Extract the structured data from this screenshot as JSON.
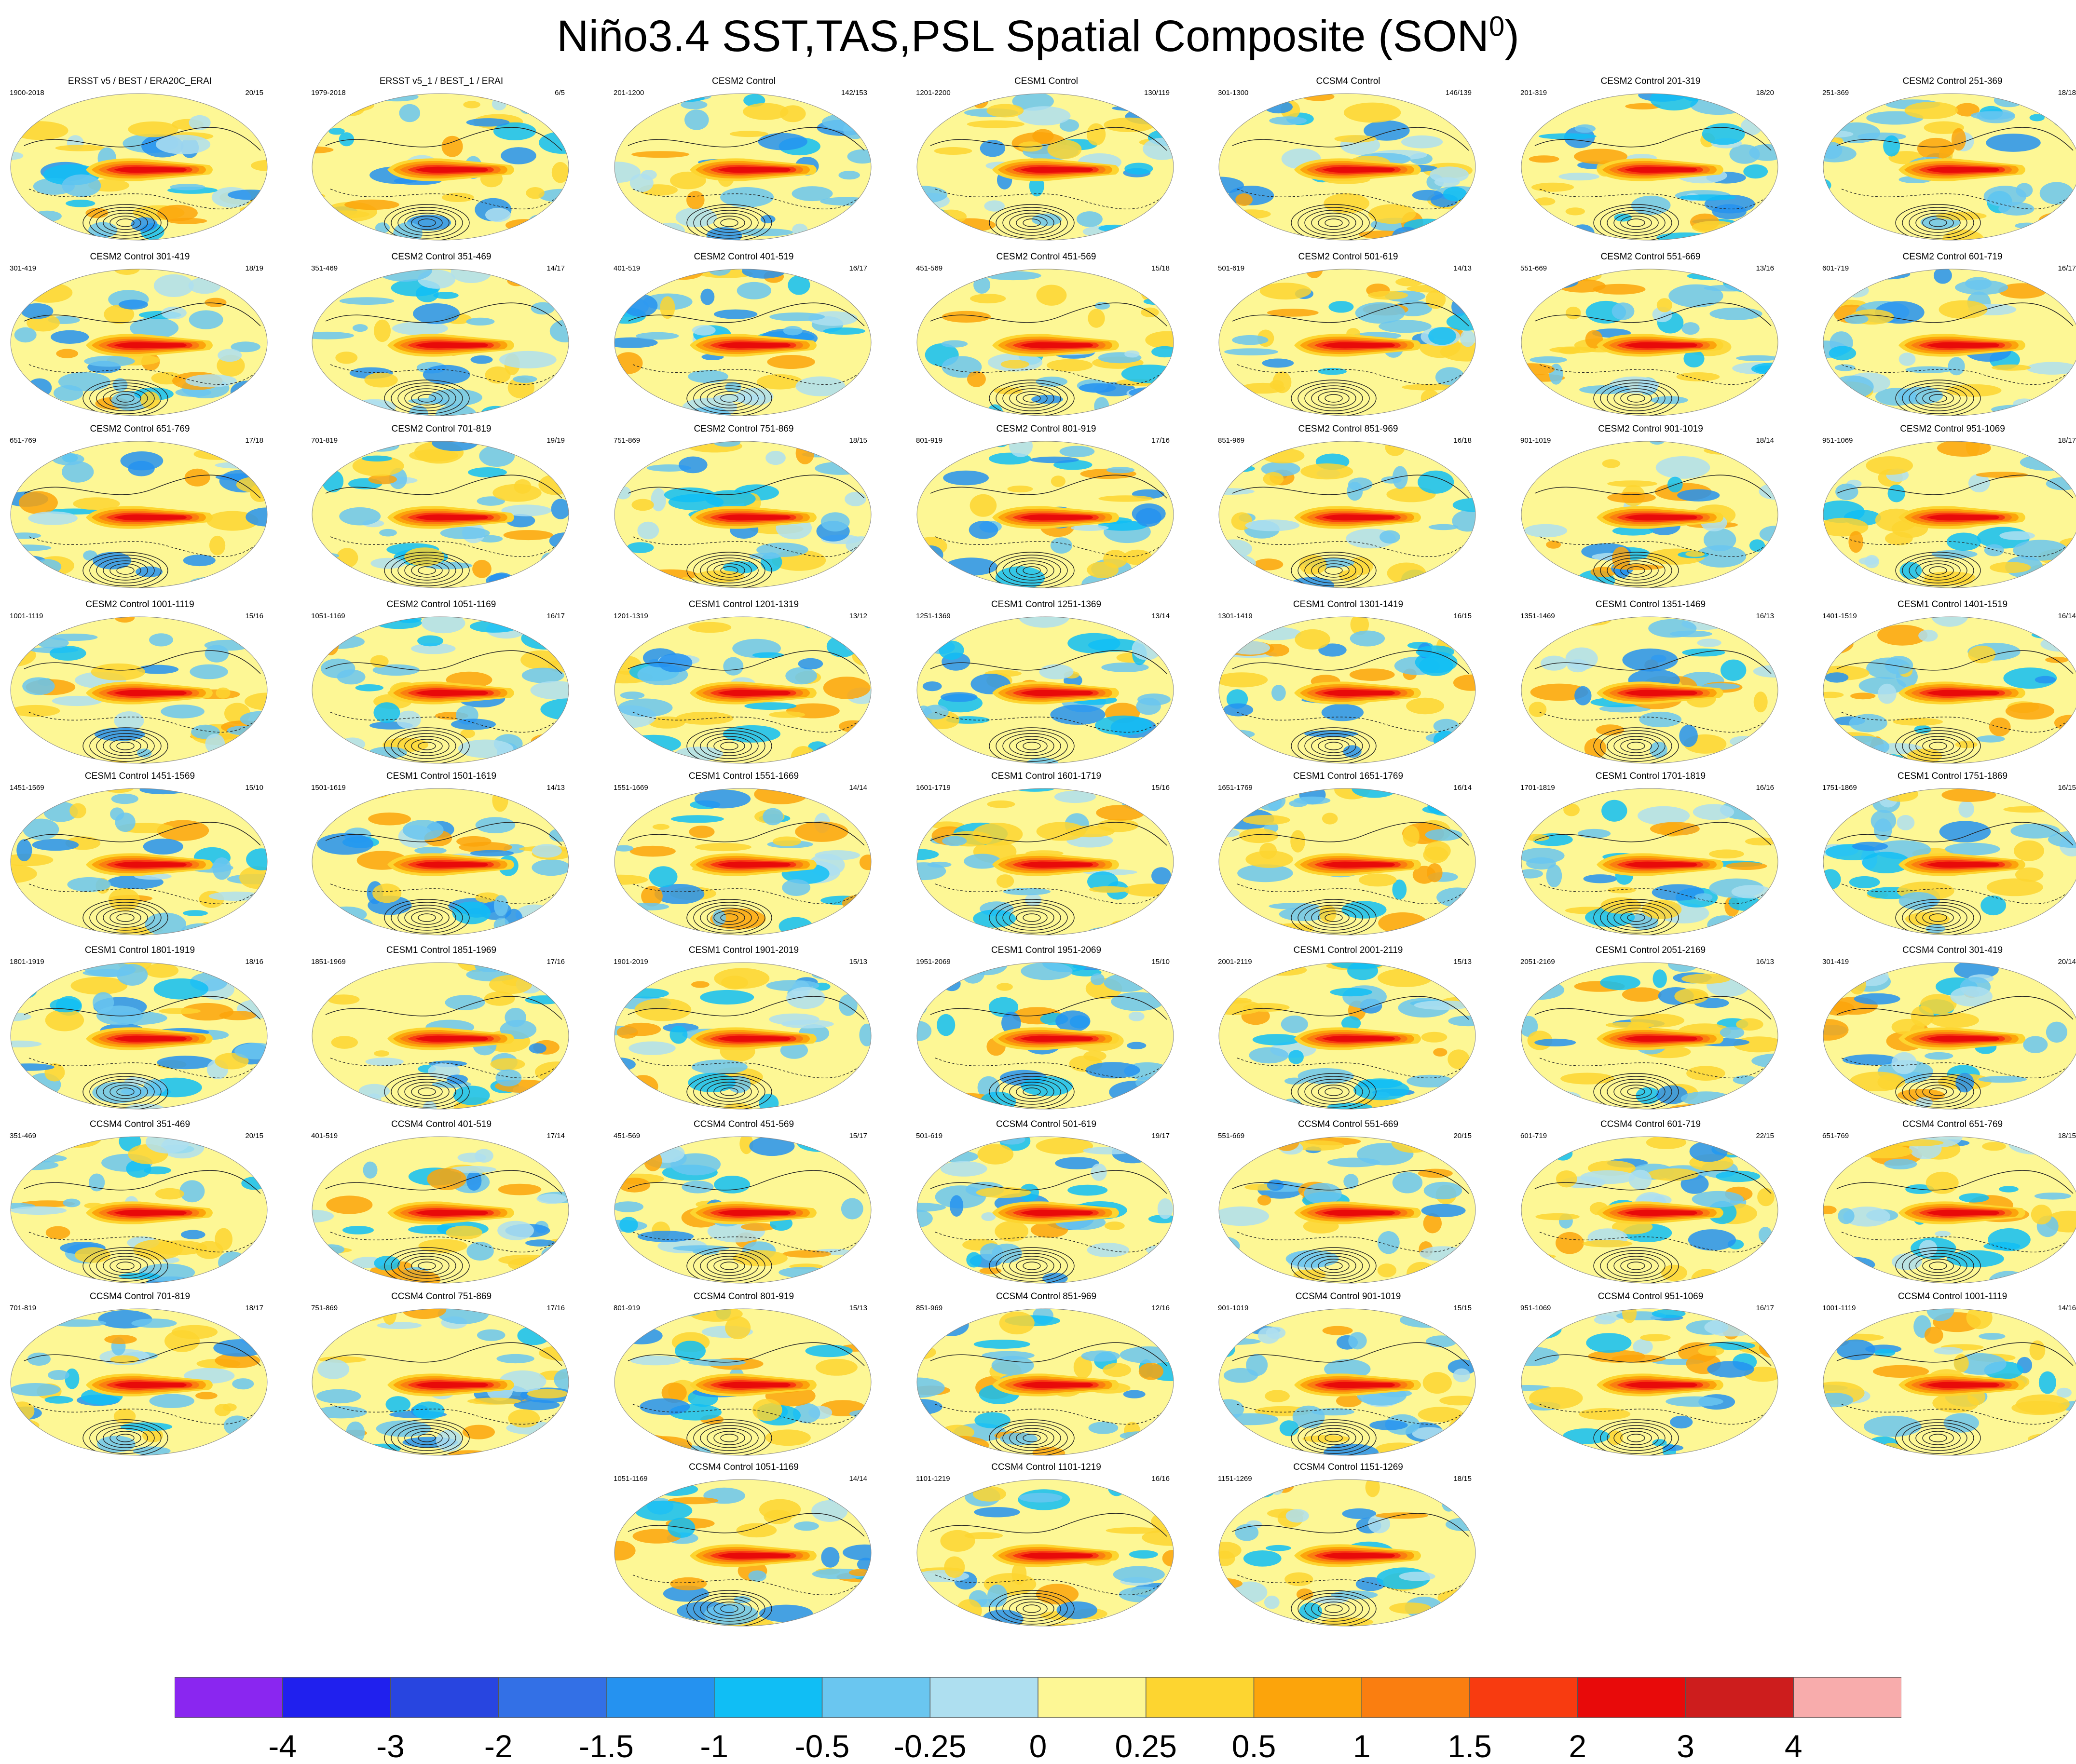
{
  "title": {
    "text": "Niño3.4 SST,TAS,PSL Spatial Composite (SON",
    "sup": "0",
    "close": ")"
  },
  "chart_data": {
    "type": "heatmap",
    "description_kind": "panel grid of global composite maps (filled anomalies with PSL contours)",
    "panels": [
      {
        "title": "ERSST v5 / BEST / ERA20C_ERAI",
        "years": "1900-2018",
        "counts": "20/15"
      },
      {
        "title": "ERSST v5_1 / BEST_1 / ERAI",
        "years": "1979-2018",
        "counts": "6/5"
      },
      {
        "title": "CESM2 Control",
        "years": "201-1200",
        "counts": "142/153"
      },
      {
        "title": "CESM1 Control",
        "years": "1201-2200",
        "counts": "130/119"
      },
      {
        "title": "CCSM4 Control",
        "years": "301-1300",
        "counts": "146/139"
      },
      {
        "title": "CESM2 Control 201-319",
        "years": "201-319",
        "counts": "18/20"
      },
      {
        "title": "CESM2 Control 251-369",
        "years": "251-369",
        "counts": "18/18"
      },
      {
        "title": "CESM2 Control 301-419",
        "years": "301-419",
        "counts": "18/19"
      },
      {
        "title": "CESM2 Control 351-469",
        "years": "351-469",
        "counts": "14/17"
      },
      {
        "title": "CESM2 Control 401-519",
        "years": "401-519",
        "counts": "16/17"
      },
      {
        "title": "CESM2 Control 451-569",
        "years": "451-569",
        "counts": "15/18"
      },
      {
        "title": "CESM2 Control 501-619",
        "years": "501-619",
        "counts": "14/13"
      },
      {
        "title": "CESM2 Control 551-669",
        "years": "551-669",
        "counts": "13/16"
      },
      {
        "title": "CESM2 Control 601-719",
        "years": "601-719",
        "counts": "16/17"
      },
      {
        "title": "CESM2 Control 651-769",
        "years": "651-769",
        "counts": "17/18"
      },
      {
        "title": "CESM2 Control 701-819",
        "years": "701-819",
        "counts": "19/19"
      },
      {
        "title": "CESM2 Control 751-869",
        "years": "751-869",
        "counts": "18/15"
      },
      {
        "title": "CESM2 Control 801-919",
        "years": "801-919",
        "counts": "17/16"
      },
      {
        "title": "CESM2 Control 851-969",
        "years": "851-969",
        "counts": "16/18"
      },
      {
        "title": "CESM2 Control 901-1019",
        "years": "901-1019",
        "counts": "18/14"
      },
      {
        "title": "CESM2 Control 951-1069",
        "years": "951-1069",
        "counts": "18/17"
      },
      {
        "title": "CESM2 Control 1001-1119",
        "years": "1001-1119",
        "counts": "15/16"
      },
      {
        "title": "CESM2 Control 1051-1169",
        "years": "1051-1169",
        "counts": "16/17"
      },
      {
        "title": "CESM1 Control 1201-1319",
        "years": "1201-1319",
        "counts": "13/12"
      },
      {
        "title": "CESM1 Control 1251-1369",
        "years": "1251-1369",
        "counts": "13/14"
      },
      {
        "title": "CESM1 Control 1301-1419",
        "years": "1301-1419",
        "counts": "16/15"
      },
      {
        "title": "CESM1 Control 1351-1469",
        "years": "1351-1469",
        "counts": "16/13"
      },
      {
        "title": "CESM1 Control 1401-1519",
        "years": "1401-1519",
        "counts": "16/14"
      },
      {
        "title": "CESM1 Control 1451-1569",
        "years": "1451-1569",
        "counts": "15/10"
      },
      {
        "title": "CESM1 Control 1501-1619",
        "years": "1501-1619",
        "counts": "14/13"
      },
      {
        "title": "CESM1 Control 1551-1669",
        "years": "1551-1669",
        "counts": "14/14"
      },
      {
        "title": "CESM1 Control 1601-1719",
        "years": "1601-1719",
        "counts": "15/16"
      },
      {
        "title": "CESM1 Control 1651-1769",
        "years": "1651-1769",
        "counts": "16/14"
      },
      {
        "title": "CESM1 Control 1701-1819",
        "years": "1701-1819",
        "counts": "16/16"
      },
      {
        "title": "CESM1 Control 1751-1869",
        "years": "1751-1869",
        "counts": "16/15"
      },
      {
        "title": "CESM1 Control 1801-1919",
        "years": "1801-1919",
        "counts": "18/16"
      },
      {
        "title": "CESM1 Control 1851-1969",
        "years": "1851-1969",
        "counts": "17/16"
      },
      {
        "title": "CESM1 Control 1901-2019",
        "years": "1901-2019",
        "counts": "15/13"
      },
      {
        "title": "CESM1 Control 1951-2069",
        "years": "1951-2069",
        "counts": "15/10"
      },
      {
        "title": "CESM1 Control 2001-2119",
        "years": "2001-2119",
        "counts": "15/13"
      },
      {
        "title": "CESM1 Control 2051-2169",
        "years": "2051-2169",
        "counts": "16/13"
      },
      {
        "title": "CCSM4 Control 301-419",
        "years": "301-419",
        "counts": "20/14"
      },
      {
        "title": "CCSM4 Control 351-469",
        "years": "351-469",
        "counts": "20/15"
      },
      {
        "title": "CCSM4 Control 401-519",
        "years": "401-519",
        "counts": "17/14"
      },
      {
        "title": "CCSM4 Control 451-569",
        "years": "451-569",
        "counts": "15/17"
      },
      {
        "title": "CCSM4 Control 501-619",
        "years": "501-619",
        "counts": "19/17"
      },
      {
        "title": "CCSM4 Control 551-669",
        "years": "551-669",
        "counts": "20/15"
      },
      {
        "title": "CCSM4 Control 601-719",
        "years": "601-719",
        "counts": "22/15"
      },
      {
        "title": "CCSM4 Control 651-769",
        "years": "651-769",
        "counts": "18/15"
      },
      {
        "title": "CCSM4 Control 701-819",
        "years": "701-819",
        "counts": "18/17"
      },
      {
        "title": "CCSM4 Control 751-869",
        "years": "751-869",
        "counts": "17/16"
      },
      {
        "title": "CCSM4 Control 801-919",
        "years": "801-919",
        "counts": "15/13"
      },
      {
        "title": "CCSM4 Control 851-969",
        "years": "851-969",
        "counts": "12/16"
      },
      {
        "title": "CCSM4 Control 901-1019",
        "years": "901-1019",
        "counts": "15/15"
      },
      {
        "title": "CCSM4 Control 951-1069",
        "years": "951-1069",
        "counts": "16/17"
      },
      {
        "title": "CCSM4 Control 1001-1119",
        "years": "1001-1119",
        "counts": "14/16"
      },
      {
        "title": "CCSM4 Control 1051-1169",
        "years": "1051-1169",
        "counts": "14/14"
      },
      {
        "title": "CCSM4 Control 1101-1219",
        "years": "1101-1219",
        "counts": "16/16"
      },
      {
        "title": "CCSM4 Control 1151-1269",
        "years": "1151-1269",
        "counts": "18/15"
      }
    ],
    "colorbar": {
      "labels": [
        "-4",
        "-3",
        "-2",
        "-1.5",
        "-1",
        "-0.5",
        "-0.25",
        "0",
        "0.25",
        "0.5",
        "1",
        "1.5",
        "2",
        "3",
        "4"
      ],
      "colors": [
        "#8a26f0",
        "#2020ee",
        "#2845e0",
        "#3370e6",
        "#2592f0",
        "#10bef5",
        "#6ac6f0",
        "#aedff0",
        "#fdf795",
        "#fdd530",
        "#fca40b",
        "#fa7e10",
        "#f83b10",
        "#e80a0a",
        "#cd1d1d",
        "#f8acac"
      ]
    }
  }
}
